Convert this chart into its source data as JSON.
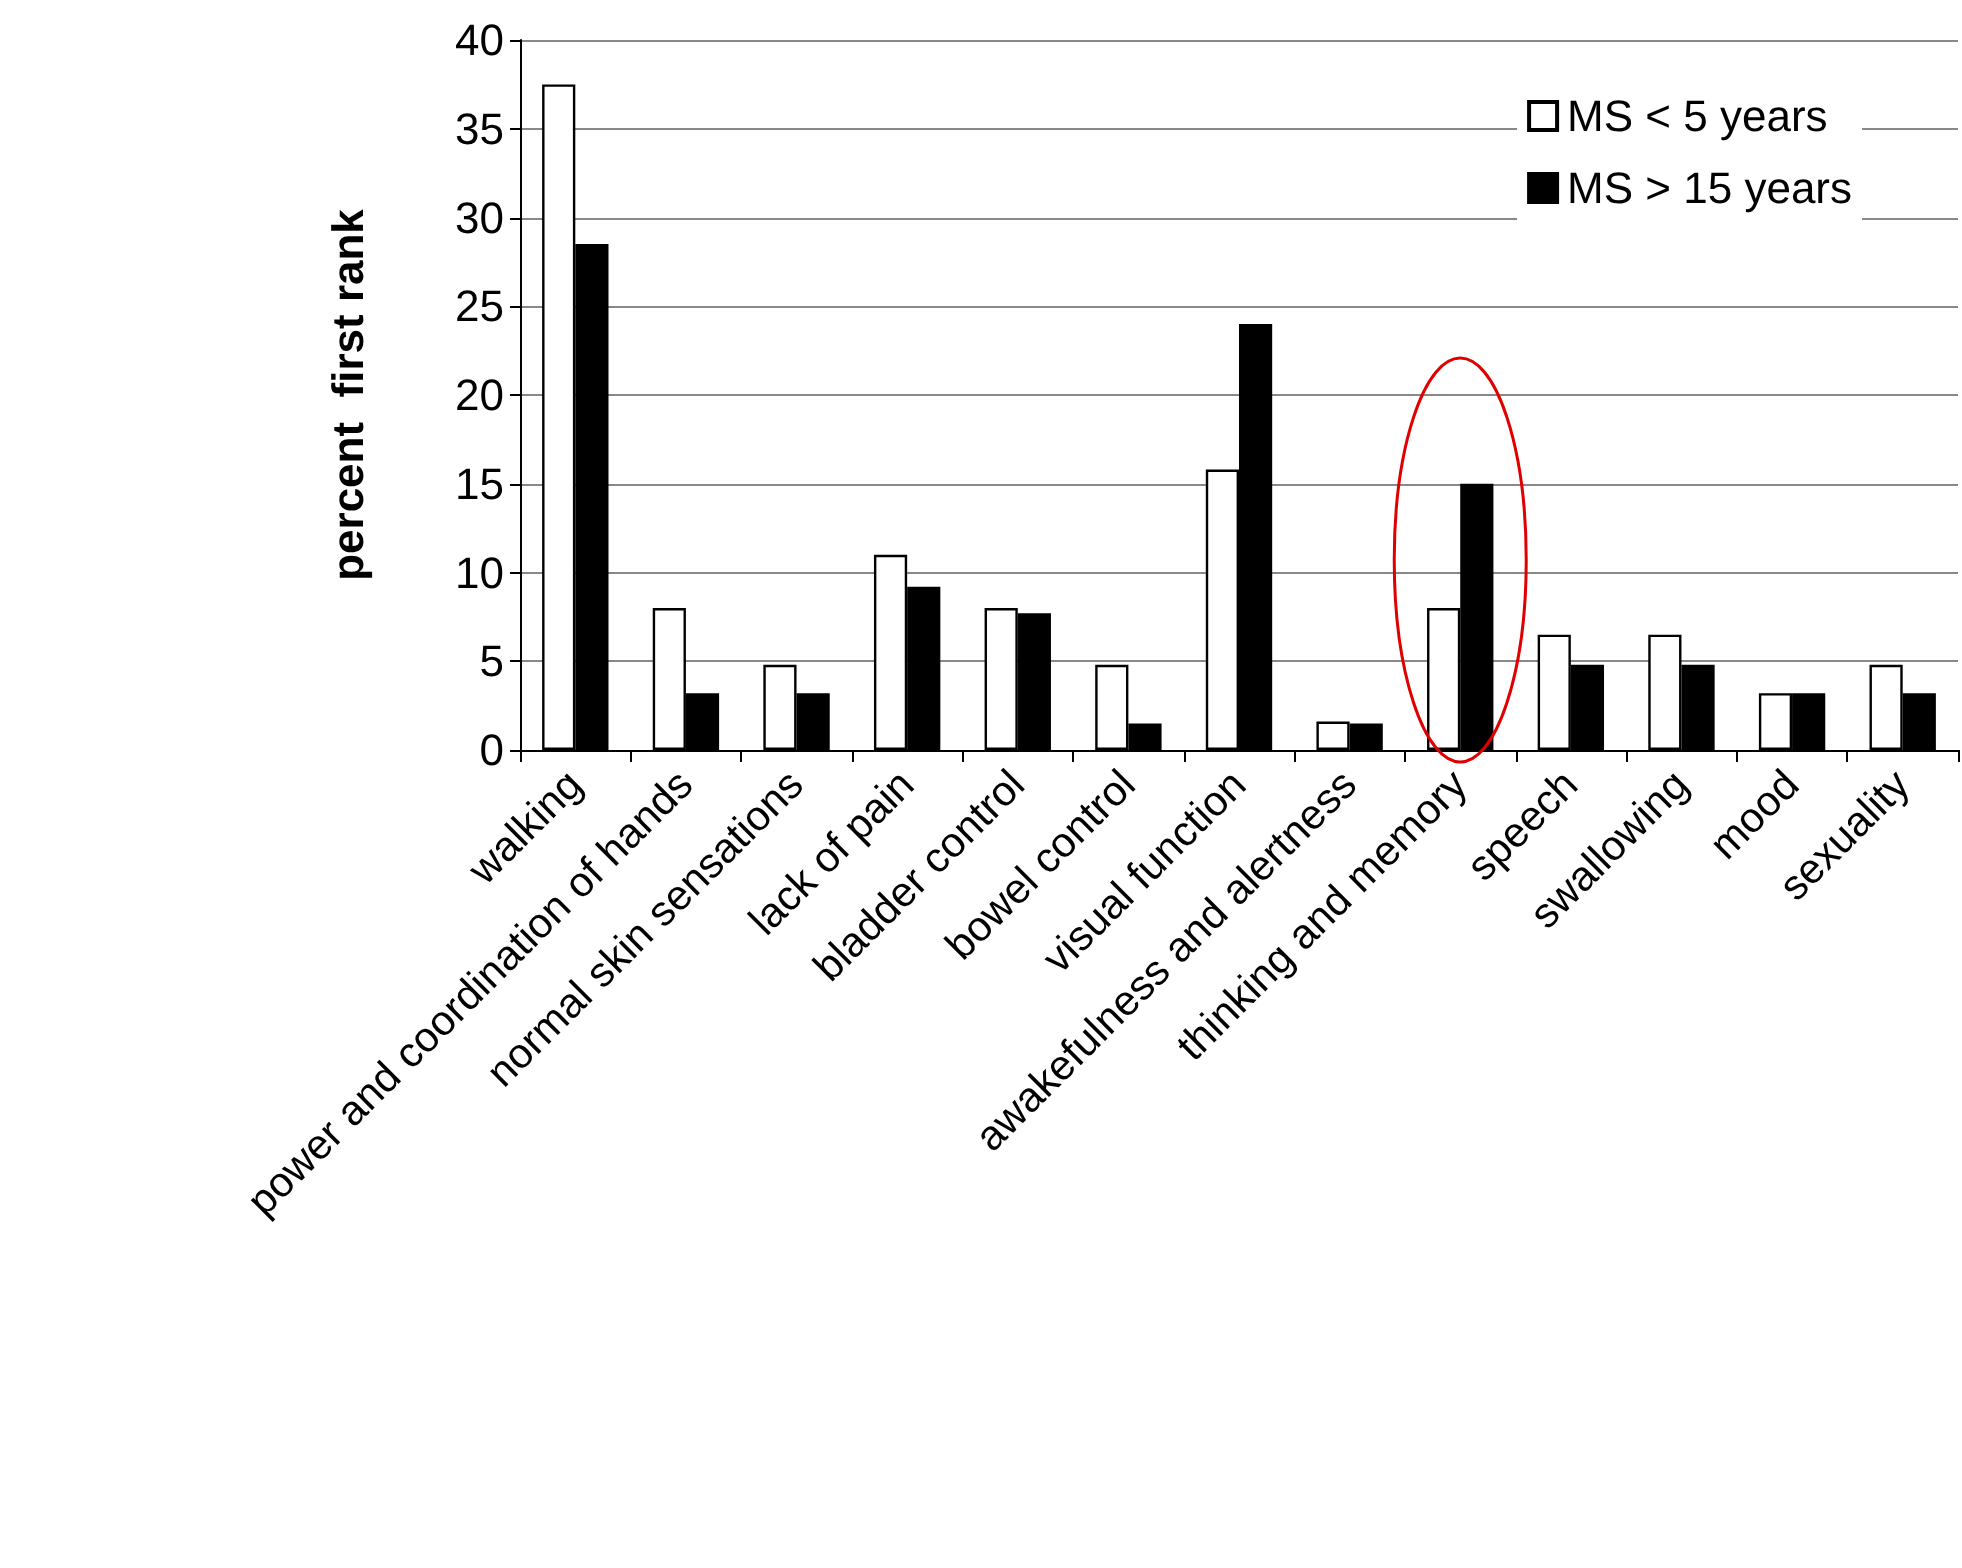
{
  "chart_data": {
    "type": "bar",
    "ylabel": "percent  first rank",
    "categories": [
      "walking",
      "power and coordination of hands",
      "normal skin sensations",
      "lack of pain",
      "bladder control",
      "bowel control",
      "visual function",
      "awakefulness and alertness",
      "thinking and memory",
      "speech",
      "swallowing",
      "mood",
      "sexuality"
    ],
    "series": [
      {
        "name": "MS < 5 years",
        "color": "#ffffff",
        "values": [
          37.5,
          8,
          4.8,
          11,
          8,
          4.8,
          15.8,
          1.6,
          8,
          6.5,
          6.5,
          3.2,
          4.8
        ]
      },
      {
        "name": "MS > 15 years",
        "color": "#000000",
        "values": [
          28.5,
          3.2,
          3.2,
          9.2,
          7.7,
          1.5,
          24,
          1.5,
          15,
          4.8,
          4.8,
          3.2,
          3.2
        ]
      }
    ],
    "ylim": [
      0,
      40
    ],
    "yticks": [
      0,
      5,
      10,
      15,
      20,
      25,
      30,
      35,
      40
    ],
    "grid": "y",
    "legend": "top right"
  }
}
